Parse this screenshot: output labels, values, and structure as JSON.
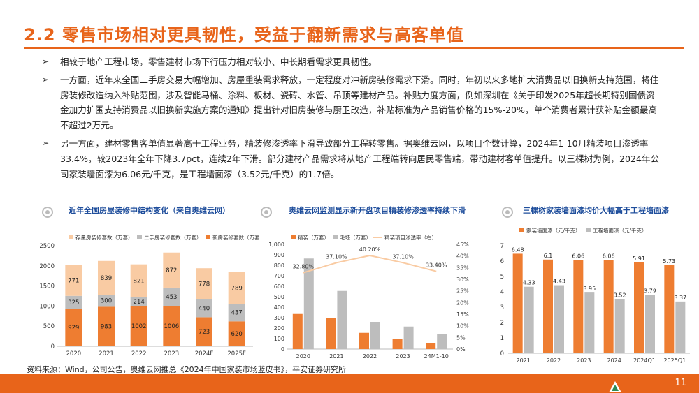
{
  "header": {
    "title": "2.2 零售市场相对更具韧性，受益于翻新需求与高客单值"
  },
  "bullets": [
    "相较于地产工程市场，零售建材市场下行压力相对较小、中长期看需求更具韧性。",
    "一方面，近年来全国二手房交易大幅增加、房屋重装需求释放，一定程度对冲新房装修需求下滑。同时，年初以来多地扩大消费品以旧换新支持范围，将住房装修改造纳入补贴范围，涉及智能马桶、涂料、板材、瓷砖、水管、吊顶等建材产品。补贴力度方面，例如深圳在《关于印发2025年超长期特别国债资金加力扩围支持消费品以旧换新实施方案的通知》提出针对旧房装修与厨卫改造，补贴标准为产品销售价格的15%-20%，单个消费者累计获补贴金额最高不超过2万元。",
    "另一方面，建材零售客单值显著高于工程业务，精装修渗透率下滑导致部分工程转零售。据奥维云网，以项目个数计算，2024年1-10月精装项目渗透率33.4%，较2023年全年下降3.7pct，连续2年下滑。部分建材产品需求将从地产工程端转向居民零售端，带动建材客单值提升。以三棵树为例，2024年公司家装墙面漆为6.06元/千克，是工程墙面漆（3.52元/千克）的1.7倍。"
  ],
  "panels": [
    {
      "title": "近年全国房屋装修中结构变化（来自奥维云网）"
    },
    {
      "title": "奥维云网监测显示新开盘项目精装修渗透率持续下滑"
    },
    {
      "title": "三棵树家装墙面漆均价大幅高于工程墙面漆"
    }
  ],
  "chart_data": [
    {
      "type": "bar",
      "stacked": true,
      "categories": [
        "2020",
        "2021",
        "2022",
        "2023",
        "2024F",
        "2025F"
      ],
      "series": [
        {
          "name": "存量房装修套数（万套）",
          "color": "#f9cba3",
          "values": [
            771,
            839,
            821,
            872,
            778,
            789
          ]
        },
        {
          "name": "二手房装修套数（万套）",
          "color": "#bdbdbd",
          "values": [
            325,
            300,
            214,
            453,
            440,
            437
          ]
        },
        {
          "name": "新房装修套数（万套）",
          "color": "#ee7d31",
          "values": [
            929,
            983,
            1002,
            1006,
            723,
            620
          ]
        }
      ],
      "ylim": [
        0,
        2500
      ],
      "yticks": [
        0,
        500,
        1000,
        1500,
        2000,
        2500
      ],
      "legend": "top"
    },
    {
      "type": "bar",
      "categories": [
        "2020",
        "2021",
        "2022",
        "2023",
        "24M1-10"
      ],
      "series": [
        {
          "name": "精装（万套）",
          "color": "#ee7d31",
          "values": [
            335,
            295,
            155,
            100,
            60
          ]
        },
        {
          "name": "毛坯（万套）",
          "color": "#bdbdbd",
          "values": [
            865,
            555,
            260,
            215,
            140
          ]
        },
        {
          "name": "精装项目渗透率（右）",
          "type": "line",
          "axis": "right",
          "color": "#f9cba3",
          "values": [
            32.8,
            37.1,
            40.2,
            37.1,
            33.4
          ],
          "labels": [
            "32.80%",
            "37.10%",
            "40.20%",
            "37.10%",
            "33.40%"
          ]
        }
      ],
      "ylim": [
        0,
        1000
      ],
      "yticks": [
        "0",
        "100",
        "200",
        "300",
        "400",
        "500",
        "600",
        "700",
        "800",
        "900",
        "1,000"
      ],
      "y2lim": [
        0,
        45
      ],
      "y2ticks": [
        "0%",
        "5%",
        "10%",
        "15%",
        "20%",
        "25%",
        "30%",
        "35%",
        "40%",
        "45%"
      ],
      "legend": "top"
    },
    {
      "type": "bar",
      "categories": [
        "2021",
        "2022",
        "2023",
        "2024",
        "2024Q1",
        "2025Q1"
      ],
      "series": [
        {
          "name": "家装墙面漆（元/千克）",
          "color": "#ee7d31",
          "values": [
            6.48,
            6.1,
            6.06,
            6.06,
            5.91,
            5.73
          ]
        },
        {
          "name": "工程墙面漆（元/千克）",
          "color": "#bdbdbd",
          "values": [
            4.33,
            4.43,
            3.95,
            3.52,
            3.79,
            3.37
          ]
        }
      ],
      "ylim": [
        0,
        7
      ],
      "yticks": [
        0,
        1,
        2,
        3,
        4,
        5,
        6,
        7
      ],
      "legend": "top"
    }
  ],
  "footer": {
    "source": "资料来源：Wind，公司公告，奥维云网推总《2024年中国家装市场蓝皮书》，平安证券研究所",
    "page": "11"
  }
}
